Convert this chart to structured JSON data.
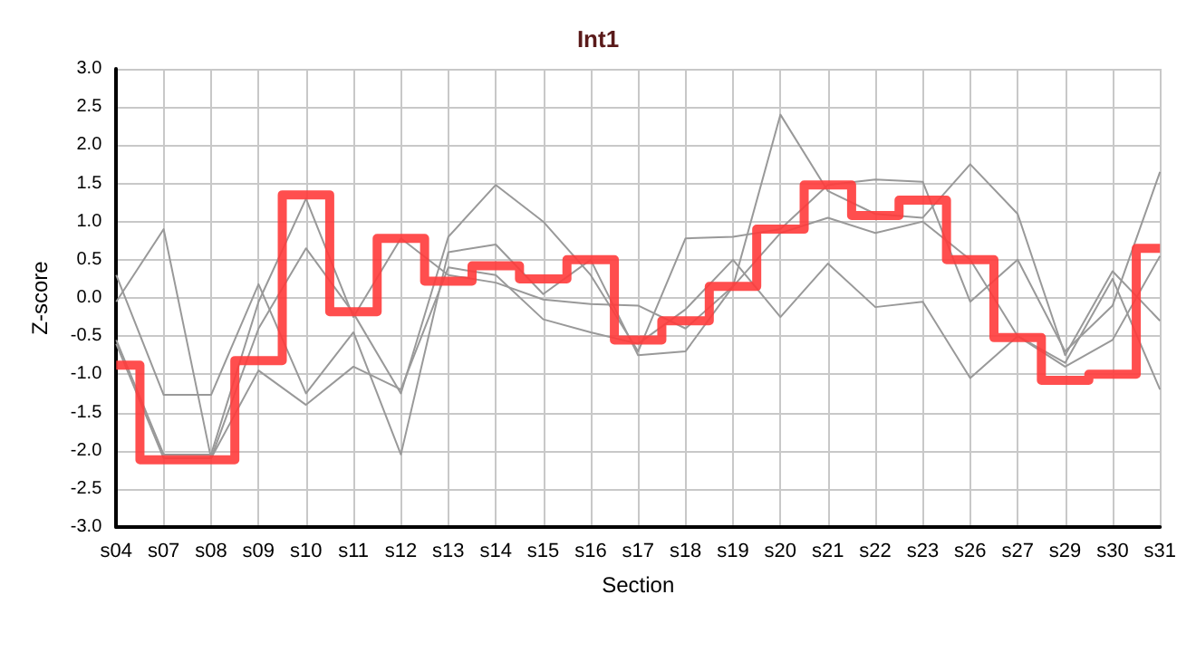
{
  "chart_data": {
    "type": "line",
    "title": "Int1",
    "xlabel": "Section",
    "ylabel": "Z-score",
    "categories": [
      "s04",
      "s07",
      "s08",
      "s09",
      "s10",
      "s11",
      "s12",
      "s13",
      "s14",
      "s15",
      "s16",
      "s17",
      "s18",
      "s19",
      "s20",
      "s21",
      "s22",
      "s23",
      "s26",
      "s27",
      "s29",
      "s30",
      "s31"
    ],
    "ylim": [
      -3,
      3
    ],
    "yticks": [
      {
        "value": -3,
        "label": "-3.0"
      },
      {
        "value": -2.5,
        "label": "-2.5"
      },
      {
        "value": -2,
        "label": "-2.0"
      },
      {
        "value": -1.5,
        "label": "-1.5"
      },
      {
        "value": -1,
        "label": "-1.0"
      },
      {
        "value": -0.5,
        "label": "-0.5"
      },
      {
        "value": 0,
        "label": "0.0"
      },
      {
        "value": 0.5,
        "label": "0.5"
      },
      {
        "value": 1,
        "label": "1.0"
      },
      {
        "value": 1.5,
        "label": "1.5"
      },
      {
        "value": 2,
        "label": "2.0"
      },
      {
        "value": 2.5,
        "label": "2.5"
      },
      {
        "value": 3,
        "label": "3.0"
      }
    ],
    "grid": true,
    "marker": "none",
    "series": [
      {
        "color": "#999999",
        "values": [
          -0.05,
          0.9,
          -2.1,
          -0.4,
          0.65,
          -0.2,
          -1.25,
          0.8,
          1.48,
          1.0,
          0.3,
          -0.7,
          0.78,
          0.8,
          0.9,
          1.48,
          1.55,
          1.52,
          -0.05,
          0.5,
          -0.7,
          -0.1,
          1.65
        ]
      },
      {
        "color": "#999999",
        "values": [
          0.3,
          -1.27,
          -1.27,
          0.18,
          -1.25,
          -0.45,
          -2.05,
          0.6,
          0.7,
          0.05,
          0.5,
          -0.75,
          -0.7,
          0.15,
          2.4,
          1.4,
          1.1,
          1.05,
          1.75,
          1.1,
          -0.75,
          0.35,
          -0.3
        ]
      },
      {
        "color": "#999999",
        "values": [
          -0.55,
          -2.05,
          -2.05,
          -0.05,
          1.3,
          -0.25,
          0.78,
          0.3,
          0.2,
          -0.02,
          -0.08,
          -0.1,
          -0.4,
          0.15,
          0.85,
          1.05,
          0.85,
          1.0,
          0.5,
          -0.5,
          -0.9,
          -0.55,
          0.55
        ]
      },
      {
        "color": "#999999",
        "values": [
          -0.6,
          -2.1,
          -2.1,
          -0.95,
          -1.4,
          -0.9,
          -1.2,
          0.4,
          0.3,
          -0.28,
          -0.45,
          -0.6,
          -0.15,
          0.5,
          -0.25,
          0.45,
          -0.12,
          -0.05,
          -1.05,
          -0.5,
          -0.85,
          0.25,
          -1.2
        ]
      },
      {
        "type": "step",
        "color": "#ff3b3b",
        "values": [
          -0.88,
          -2.12,
          -2.12,
          -0.82,
          1.35,
          -0.18,
          0.78,
          0.22,
          0.42,
          0.25,
          0.5,
          -0.55,
          -0.3,
          0.15,
          0.9,
          1.48,
          1.08,
          1.28,
          0.5,
          -0.52,
          -1.08,
          -1.0,
          0.65
        ]
      }
    ]
  }
}
